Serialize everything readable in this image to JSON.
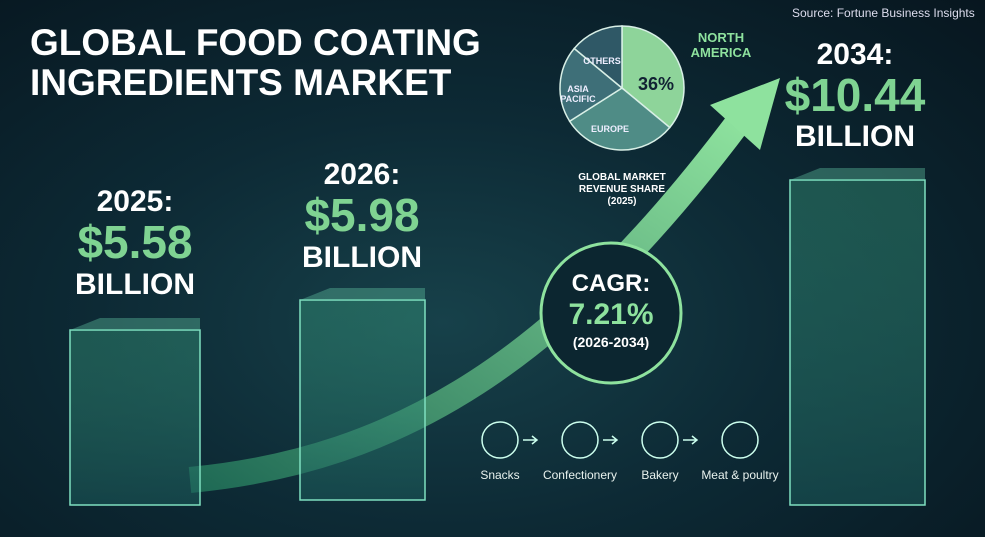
{
  "source": "Source: Fortune Business Insights",
  "title": [
    "GLOBAL FOOD COATING",
    "INGREDIENTS MARKET"
  ],
  "milestones": [
    {
      "year": "2025:",
      "value": "$5.58",
      "unit": "BILLION"
    },
    {
      "year": "2026:",
      "value": "$5.98",
      "unit": "BILLION"
    },
    {
      "year": "2034:",
      "value": "$10.44",
      "unit": "BILLION"
    }
  ],
  "cagr": {
    "label": "CAGR:",
    "value": "7.21%",
    "period": "(2026-2034)"
  },
  "share": {
    "caption": [
      "GLOBAL MARKET",
      "REVENUE SHARE",
      "(2025)"
    ],
    "segments": [
      {
        "name": "NORTH AMERICA",
        "value": 36,
        "label": "36%"
      },
      {
        "name": "EUROPE",
        "value": 30
      },
      {
        "name": "ASIA PACIFIC",
        "value": 20
      },
      {
        "name": "OTHERS",
        "value": 14
      }
    ]
  },
  "applications": [
    "Snacks",
    "Confectionery",
    "Bakery",
    "Meat & poultry"
  ]
}
